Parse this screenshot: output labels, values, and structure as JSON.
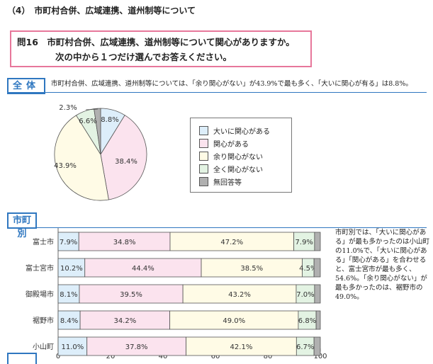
{
  "section_title": "（4）　市町村合併、広域連携、道州制等について",
  "question": {
    "line1": "問16　市町村合併、広域連携、道州制等について関心がありますか。",
    "line2": "次の中から１つだけ選んでお答えください。"
  },
  "overall": {
    "tag": "全体",
    "summary": "市町村合併、広域連携、道州制等については、「余り関心がない」が43.9%で最も多く、「大いに関心が有る」は8.8%。"
  },
  "by_city": {
    "tag": "市町別",
    "note": "市町別では、「大いに関心がある」が最も多かったのは小山町の11.0%で、「大いに関心がある」「関心がある」を合わせると、富士宮市が最も多く、54.6%。「余り関心がない」が最も多かったのは、裾野市の49.0%。"
  },
  "colors": {
    "very_interested": "#ddeefa",
    "interested": "#fbe3ee",
    "not_much": "#fffbe6",
    "none": "#e3f3e3",
    "no_answer": "#b0b0b0",
    "border": "#555555",
    "accent": "#2f77c0",
    "question_border": "#e7779b"
  },
  "chart_data": [
    {
      "type": "pie",
      "categories": [
        "大いに関心がある",
        "関心がある",
        "余り関心がない",
        "全く関心がない",
        "無回答等"
      ],
      "values": [
        8.8,
        38.4,
        43.9,
        6.6,
        2.3
      ],
      "value_labels": [
        "8.8%",
        "38.4%",
        "43.9%",
        "6.6%",
        "2.3%"
      ],
      "legend_placement": "right"
    },
    {
      "type": "bar",
      "orientation": "horizontal",
      "stacked": true,
      "categories": [
        "富士市",
        "富士宮市",
        "御殿場市",
        "裾野市",
        "小山町"
      ],
      "series": [
        {
          "name": "大いに関心がある",
          "values": [
            7.9,
            10.2,
            8.1,
            8.4,
            11.0
          ],
          "labels": [
            "7.9%",
            "10.2%",
            "8.1%",
            "8.4%",
            "11.0%"
          ]
        },
        {
          "name": "関心がある",
          "values": [
            34.8,
            44.4,
            39.5,
            34.2,
            37.8
          ],
          "labels": [
            "34.8%",
            "44.4%",
            "39.5%",
            "34.2%",
            "37.8%"
          ]
        },
        {
          "name": "余り関心がない",
          "values": [
            47.2,
            38.5,
            43.2,
            49.0,
            42.1
          ],
          "labels": [
            "47.2%",
            "38.5%",
            "43.2%",
            "49.0%",
            "42.1%"
          ]
        },
        {
          "name": "全く関心がない",
          "values": [
            7.9,
            4.5,
            7.0,
            6.8,
            6.7
          ],
          "labels": [
            "7.9%",
            "4.5%",
            "7.0%",
            "6.8%",
            "6.7%"
          ]
        },
        {
          "name": "無回答等",
          "values": [
            2.2,
            2.4,
            2.2,
            1.6,
            2.4
          ],
          "labels": [
            "",
            "",
            "",
            "",
            ""
          ]
        }
      ],
      "xlim": [
        0,
        100
      ],
      "xticks": [
        "0",
        "20",
        "40",
        "60",
        "80",
        "100"
      ],
      "grid": false
    }
  ]
}
